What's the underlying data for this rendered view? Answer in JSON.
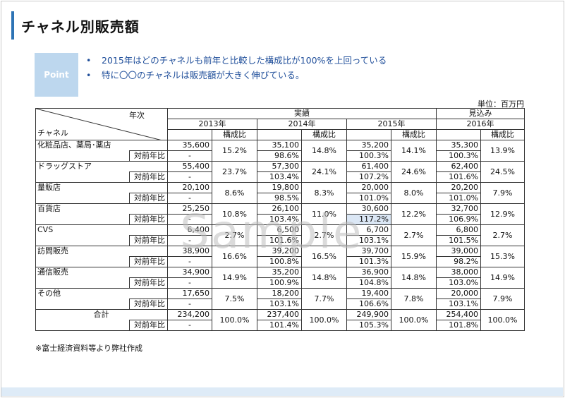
{
  "title": "チャネル別販売額",
  "point_label": "Point",
  "bullets": [
    "2015年はどのチャネルも前年と比較した構成比が100%を上回っている",
    "特に〇〇のチャネルは販売額が大きく伸びている。"
  ],
  "unit": "単位：百万円",
  "header": {
    "year_label": "年次",
    "channel_label": "チャネル",
    "actual": "実績",
    "forecast": "見込み",
    "years": [
      "2013年",
      "2014年",
      "2015年",
      "2016年"
    ],
    "ratio": "構成比"
  },
  "yoy_label": "対前年比",
  "rows": [
    {
      "name": "化粧品店、薬局･薬店",
      "v2013": "35,600",
      "r2013": "15.2%",
      "y2013": "-",
      "v2014": "35,100",
      "r2014": "14.8%",
      "y2014": "98.6%",
      "v2015": "35,200",
      "r2015": "14.1%",
      "y2015": "100.3%",
      "v2016": "35,300",
      "r2016": "13.9%",
      "y2016": "100.3%"
    },
    {
      "name": "ドラッグストア",
      "v2013": "55,400",
      "r2013": "23.7%",
      "y2013": "-",
      "v2014": "57,300",
      "r2014": "24.1%",
      "y2014": "103.4%",
      "v2015": "61,400",
      "r2015": "24.6%",
      "y2015": "107.2%",
      "v2016": "62,400",
      "r2016": "24.5%",
      "y2016": "101.6%"
    },
    {
      "name": "量販店",
      "v2013": "20,100",
      "r2013": "8.6%",
      "y2013": "-",
      "v2014": "19,800",
      "r2014": "8.3%",
      "y2014": "98.5%",
      "v2015": "20,000",
      "r2015": "8.0%",
      "y2015": "101.0%",
      "v2016": "20,200",
      "r2016": "7.9%",
      "y2016": "101.0%"
    },
    {
      "name": "百貨店",
      "v2013": "25,250",
      "r2013": "10.8%",
      "y2013": "-",
      "v2014": "26,100",
      "r2014": "11.0%",
      "y2014": "103.4%",
      "v2015": "30,600",
      "r2015": "12.2%",
      "y2015": "117.2%",
      "v2016": "32,700",
      "r2016": "12.9%",
      "y2016": "106.9%"
    },
    {
      "name": "CVS",
      "v2013": "6,400",
      "r2013": "2.7%",
      "y2013": "-",
      "v2014": "6,500",
      "r2014": "2.7%",
      "y2014": "101.6%",
      "v2015": "6,700",
      "r2015": "2.7%",
      "y2015": "103.1%",
      "v2016": "6,800",
      "r2016": "2.7%",
      "y2016": "101.5%"
    },
    {
      "name": "訪問販売",
      "v2013": "38,900",
      "r2013": "16.6%",
      "y2013": "-",
      "v2014": "39,200",
      "r2014": "16.5%",
      "y2014": "100.8%",
      "v2015": "39,700",
      "r2015": "15.9%",
      "y2015": "101.3%",
      "v2016": "39,000",
      "r2016": "15.3%",
      "y2016": "98.2%"
    },
    {
      "name": "通信販売",
      "v2013": "34,900",
      "r2013": "14.9%",
      "y2013": "-",
      "v2014": "35,200",
      "r2014": "14.8%",
      "y2014": "100.9%",
      "v2015": "36,900",
      "r2015": "14.8%",
      "y2015": "104.8%",
      "v2016": "38,000",
      "r2016": "14.9%",
      "y2016": "103.0%"
    },
    {
      "name": "その他",
      "v2013": "17,650",
      "r2013": "7.5%",
      "y2013": "-",
      "v2014": "18,200",
      "r2014": "7.7%",
      "y2014": "103.1%",
      "v2015": "19,400",
      "r2015": "7.8%",
      "y2015": "106.6%",
      "v2016": "20,000",
      "r2016": "7.9%",
      "y2016": "103.1%"
    }
  ],
  "total": {
    "name": "合計",
    "v2013": "234,200",
    "r2013": "100.0%",
    "y2013": "-",
    "v2014": "237,400",
    "r2014": "100.0%",
    "y2014": "101.4%",
    "v2015": "249,900",
    "r2015": "100.0%",
    "y2015": "105.3%",
    "v2016": "254,400",
    "r2016": "100.0%",
    "y2016": "101.8%"
  },
  "note": "※富士経済資料等より弊社作成",
  "watermark": "Sample"
}
